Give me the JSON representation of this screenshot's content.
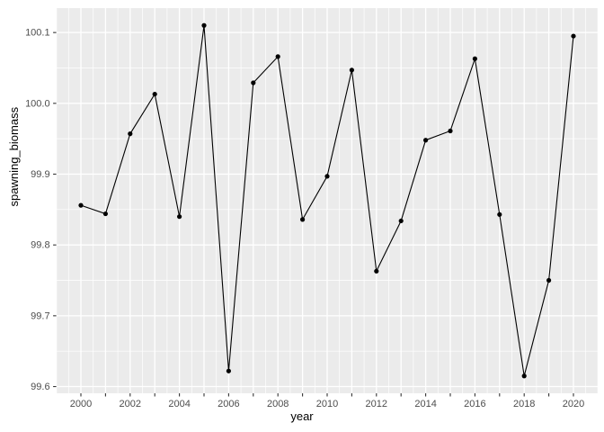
{
  "chart_data": {
    "type": "line",
    "title": "",
    "xlabel": "year",
    "ylabel": "spawning_biomass",
    "x": [
      2000,
      2001,
      2002,
      2003,
      2004,
      2005,
      2006,
      2007,
      2008,
      2009,
      2010,
      2011,
      2012,
      2013,
      2014,
      2015,
      2016,
      2017,
      2018,
      2019,
      2020
    ],
    "series": [
      {
        "name": "spawning_biomass",
        "values": [
          99.856,
          99.844,
          99.957,
          100.013,
          99.84,
          100.11,
          99.622,
          100.029,
          100.066,
          99.836,
          99.897,
          100.047,
          99.763,
          99.834,
          99.948,
          99.961,
          100.063,
          99.843,
          99.615,
          99.75,
          100.095
        ]
      }
    ],
    "x_axis": {
      "limits": [
        1999,
        2021
      ],
      "tick_years": [
        2000,
        2001,
        2002,
        2003,
        2004,
        2005,
        2006,
        2007,
        2008,
        2009,
        2010,
        2011,
        2012,
        2013,
        2014,
        2015,
        2016,
        2017,
        2018,
        2019,
        2020
      ],
      "label_years": [
        2000,
        2002,
        2004,
        2006,
        2008,
        2010,
        2012,
        2014,
        2016,
        2018,
        2020
      ],
      "major_grid_years": [
        1999,
        2000,
        2001,
        2002,
        2003,
        2004,
        2005,
        2006,
        2007,
        2008,
        2009,
        2010,
        2011,
        2012,
        2013,
        2014,
        2015,
        2016,
        2017,
        2018,
        2019,
        2020,
        2021
      ],
      "minor_grid_years": [
        1999.5,
        2000.5,
        2001.5,
        2002.5,
        2003.5,
        2004.5,
        2005.5,
        2006.5,
        2007.5,
        2008.5,
        2009.5,
        2010.5,
        2011.5,
        2012.5,
        2013.5,
        2014.5,
        2015.5,
        2016.5,
        2017.5,
        2018.5,
        2019.5,
        2020.5
      ],
      "grid": true
    },
    "y_axis": {
      "limits": [
        99.5905,
        100.1345
      ],
      "ticks": [
        99.6,
        99.7,
        99.8,
        99.9,
        100.0,
        100.1
      ],
      "tick_labels": [
        "99.6",
        "99.7",
        "99.8",
        "99.9",
        "100.0",
        "100.1"
      ],
      "minor_grid": [
        99.65,
        99.75,
        99.85,
        99.95,
        100.05
      ],
      "grid": true
    },
    "legend": "none",
    "style": {
      "panel_bg": "#EBEBEB",
      "grid_color": "#FFFFFF",
      "line_color": "#000000",
      "point_color": "#000000",
      "tick_color": "#333333",
      "tick_label_color": "#4D4D4D",
      "axis_title_color": "#000000"
    }
  }
}
